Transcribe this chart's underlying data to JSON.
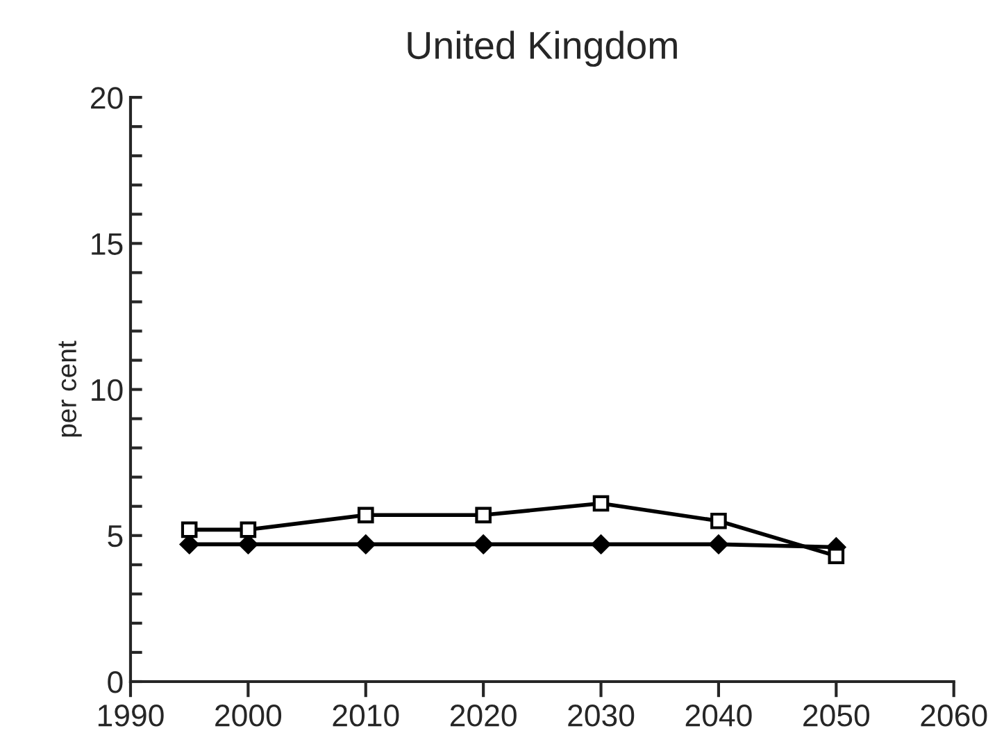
{
  "chart_data": {
    "type": "line",
    "title": "United Kingdom",
    "ylabel": "per cent",
    "x": [
      1995,
      2000,
      2010,
      2020,
      2030,
      2040,
      2050
    ],
    "series": [
      {
        "color": "#000000",
        "marker": "square",
        "values": [
          5.2,
          5.2,
          5.7,
          5.7,
          6.1,
          5.5,
          4.3
        ]
      },
      {
        "color": "#000000",
        "marker": "diamond",
        "values": [
          4.7,
          4.7,
          4.7,
          4.7,
          4.7,
          4.7,
          4.6
        ]
      }
    ],
    "xlim": [
      1990,
      2060
    ],
    "xticks": [
      1990,
      2000,
      2010,
      2020,
      2030,
      2040,
      2050,
      2060
    ],
    "ylim": [
      0,
      20
    ],
    "yticks": [
      0,
      {
        "value": 1,
        "label": null
      },
      {
        "value": 2,
        "label": null
      },
      {
        "value": 3,
        "label": null
      },
      {
        "value": 4,
        "label": null
      },
      5,
      {
        "value": 6,
        "label": null
      },
      {
        "value": 7,
        "label": null
      },
      {
        "value": 8,
        "label": null
      },
      {
        "value": 9,
        "label": null
      },
      10,
      {
        "value": 11,
        "label": null
      },
      {
        "value": 12,
        "label": null
      },
      {
        "value": 13,
        "label": null
      },
      {
        "value": 14,
        "label": null
      },
      15,
      {
        "value": 16,
        "label": null
      },
      {
        "value": 17,
        "label": null
      },
      {
        "value": 18,
        "label": null
      },
      {
        "value": 19,
        "label": null
      },
      20
    ],
    "grid": false,
    "legend": false,
    "line_style": "solid"
  }
}
